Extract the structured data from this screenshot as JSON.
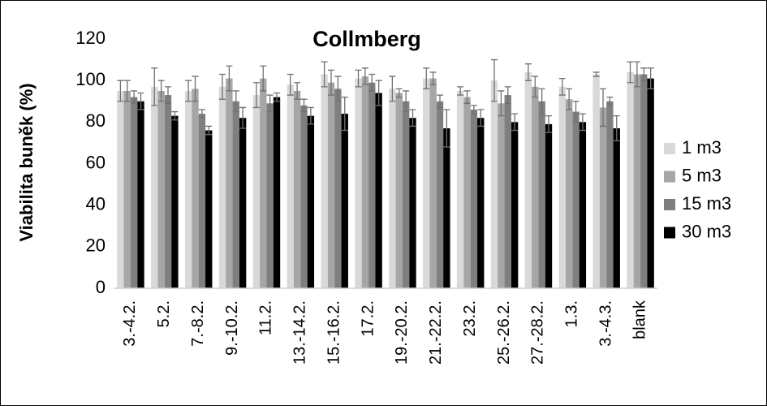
{
  "chart_data": {
    "type": "bar",
    "title": "Collmberg",
    "y_label": "Viabilita buněk (%)",
    "categories": [
      "3.-4.2.",
      "5.2.",
      "7.-8.2.",
      "9.-10.2.",
      "11.2.",
      "13.-14.2.",
      "15.-16.2.",
      "17.2.",
      "19.-20.2.",
      "21.-22.2.",
      "23.2.",
      "25.-26.2.",
      "27.-28.2.",
      "1.3.",
      "3.-4.3.",
      "blank"
    ],
    "series": [
      {
        "name": "1 m3",
        "color": "#d9d9d9",
        "values": [
          95,
          97,
          95,
          97,
          93,
          98,
          103,
          101,
          96,
          101,
          95,
          100,
          104,
          97,
          103,
          104
        ],
        "errors": [
          5,
          9,
          5,
          6,
          6,
          5,
          6,
          4,
          6,
          5,
          2,
          10,
          4,
          4,
          1,
          5
        ]
      },
      {
        "name": "5 m3",
        "color": "#a6a6a6",
        "values": [
          95,
          95,
          96,
          101,
          101,
          95,
          99,
          102,
          94,
          101,
          92,
          89,
          97,
          91,
          87,
          103
        ],
        "errors": [
          5,
          5,
          6,
          6,
          6,
          4,
          6,
          4,
          2,
          3,
          3,
          6,
          5,
          5,
          9,
          6
        ]
      },
      {
        "name": "15 m3",
        "color": "#7f7f7f",
        "values": [
          92,
          93,
          84,
          90,
          89,
          88,
          96,
          99,
          90,
          90,
          86,
          93,
          90,
          85,
          90,
          103
        ],
        "errors": [
          3,
          4,
          2,
          5,
          4,
          3,
          6,
          4,
          5,
          3,
          2,
          4,
          6,
          5,
          2,
          3
        ]
      },
      {
        "name": "30 m3",
        "color": "#000000",
        "values": [
          90,
          83,
          76,
          82,
          92,
          83,
          84,
          94,
          82,
          77,
          82,
          80,
          79,
          80,
          77,
          101
        ],
        "errors": [
          4,
          2,
          2,
          5,
          2,
          4,
          8,
          6,
          4,
          9,
          4,
          4,
          4,
          4,
          6,
          5
        ]
      }
    ],
    "ylim": [
      0,
      120
    ],
    "yticks": [
      0,
      20,
      40,
      60,
      80,
      100,
      120
    ],
    "grid": false,
    "legend": "right"
  }
}
